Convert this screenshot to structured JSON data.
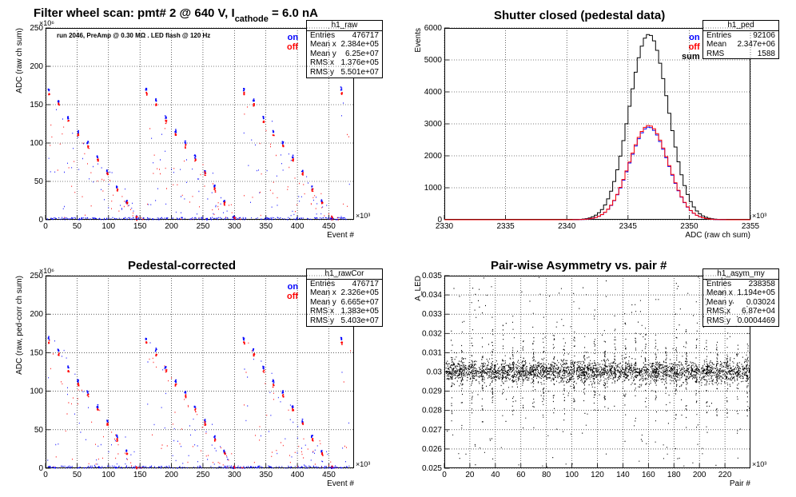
{
  "pads": {
    "tl": {
      "title_main": "Filter wheel scan: pmt#   2 @   640 V, I",
      "title_sub": "cathode",
      "title_tail": "= 6.0 nA",
      "note": "run 2046, PreAmp @ 0.30 MΩ . LED flash @  120 Hz",
      "stats": {
        "name": "h1_raw",
        "rows": [
          [
            "Entries",
            "476717"
          ],
          [
            "Mean x",
            "2.384e+05"
          ],
          [
            "Mean y",
            "6.25e+07"
          ],
          [
            "RMS x",
            "1.376e+05"
          ],
          [
            "RMS y",
            "5.501e+07"
          ]
        ]
      },
      "legend": [
        {
          "label": "on",
          "color": "#0000ff"
        },
        {
          "label": "off",
          "color": "#ff0000"
        }
      ]
    },
    "tr": {
      "title": "Shutter closed (pedestal data)",
      "stats": {
        "name": "h1_ped",
        "rows": [
          [
            "Entries",
            "92106"
          ],
          [
            "Mean",
            "2.347e+06"
          ],
          [
            "RMS",
            "1588"
          ]
        ]
      },
      "legend": [
        {
          "label": "on",
          "color": "#0000ff"
        },
        {
          "label": "off",
          "color": "#ff0000"
        },
        {
          "label": "sum",
          "color": "#000000"
        }
      ]
    },
    "bl": {
      "title": "Pedestal-corrected",
      "stats": {
        "name": "h1_rawCor",
        "rows": [
          [
            "Entries",
            "476717"
          ],
          [
            "Mean x",
            "2.326e+05"
          ],
          [
            "Mean y",
            "6.665e+07"
          ],
          [
            "RMS x",
            "1.383e+05"
          ],
          [
            "RMS y",
            "5.403e+07"
          ]
        ]
      },
      "legend": [
        {
          "label": "on",
          "color": "#0000ff"
        },
        {
          "label": "off",
          "color": "#ff0000"
        }
      ]
    },
    "br": {
      "title": "Pair-wise Asymmetry vs. pair #",
      "stats": {
        "name": "h1_asym_my",
        "rows": [
          [
            "Entries",
            "238358"
          ],
          [
            "Mean x",
            "1.194e+05"
          ],
          [
            "Mean y",
            "0.03024"
          ],
          [
            "RMS x",
            "6.87e+04"
          ],
          [
            "RMS y",
            "0.0004469"
          ]
        ]
      }
    }
  },
  "chart_data": [
    {
      "type": "scatter",
      "title": "Filter wheel scan: pmt#   2 @   640 V, I cathode = 6.0 nA",
      "xlabel": "Event #",
      "ylabel": "ADC (raw ch sum)",
      "x_multiplier": "×10³",
      "y_multiplier": "×10⁶",
      "xlim": [
        0,
        490
      ],
      "ylim": [
        0,
        250
      ],
      "x_ticks": [
        0,
        50,
        100,
        150,
        200,
        250,
        300,
        350,
        400,
        450
      ],
      "y_ticks": [
        0,
        50,
        100,
        150,
        200,
        250
      ],
      "series": [
        {
          "name": "on",
          "color": "#0000ff",
          "levels": [
            170,
            155,
            133,
            115,
            101,
            82,
            63,
            43,
            24,
            3
          ]
        },
        {
          "name": "off",
          "color": "#ff0000",
          "levels": [
            165,
            150,
            128,
            110,
            96,
            78,
            60,
            39,
            21,
            3
          ]
        }
      ],
      "step_period": 15.5
    },
    {
      "type": "histogram",
      "title": "Shutter closed (pedestal data)",
      "xlabel": "ADC (raw ch sum)",
      "ylabel": "Events",
      "x_multiplier": "×10³",
      "xlim": [
        2330,
        2355
      ],
      "ylim": [
        0,
        6000
      ],
      "x_ticks": [
        2330,
        2335,
        2340,
        2345,
        2350,
        2355
      ],
      "y_ticks": [
        0,
        1000,
        2000,
        3000,
        4000,
        5000,
        6000
      ],
      "series": [
        {
          "name": "sum",
          "color": "#000000",
          "peak": 5800,
          "mean": 2346.7,
          "sigma": 1.59
        },
        {
          "name": "on",
          "color": "#0000ff",
          "peak": 2900,
          "mean": 2346.7,
          "sigma": 1.59
        },
        {
          "name": "off",
          "color": "#ff0000",
          "peak": 2950,
          "mean": 2346.7,
          "sigma": 1.59
        }
      ]
    },
    {
      "type": "scatter",
      "title": "Pedestal-corrected",
      "xlabel": "Event #",
      "ylabel": "ADC (raw, ped-corr ch sum)",
      "x_multiplier": "×10³",
      "y_multiplier": "×10⁶",
      "xlim": [
        0,
        490
      ],
      "ylim": [
        0,
        250
      ],
      "x_ticks": [
        0,
        50,
        100,
        150,
        200,
        250,
        300,
        350,
        400,
        450
      ],
      "y_ticks": [
        0,
        50,
        100,
        150,
        200,
        250
      ],
      "series": [
        {
          "name": "on",
          "color": "#0000ff",
          "levels": [
            168,
            153,
            131,
            113,
            99,
            80,
            61,
            41,
            22,
            1
          ]
        },
        {
          "name": "off",
          "color": "#ff0000",
          "levels": [
            163,
            148,
            126,
            108,
            94,
            76,
            58,
            37,
            19,
            1
          ]
        }
      ],
      "step_period": 15.5
    },
    {
      "type": "scatter",
      "title": "Pair-wise Asymmetry vs. pair #",
      "xlabel": "Pair #",
      "ylabel": "A_LED",
      "x_multiplier": "×10³",
      "xlim": [
        0,
        240
      ],
      "ylim": [
        0.025,
        0.035
      ],
      "x_ticks": [
        0,
        20,
        40,
        60,
        80,
        100,
        120,
        140,
        160,
        180,
        200,
        220
      ],
      "y_ticks": [
        0.025,
        0.026,
        0.027,
        0.028,
        0.029,
        0.03,
        0.031,
        0.032,
        0.033,
        0.034,
        0.035
      ],
      "band": {
        "center": 0.03,
        "halfwidth": 0.0004
      }
    }
  ]
}
